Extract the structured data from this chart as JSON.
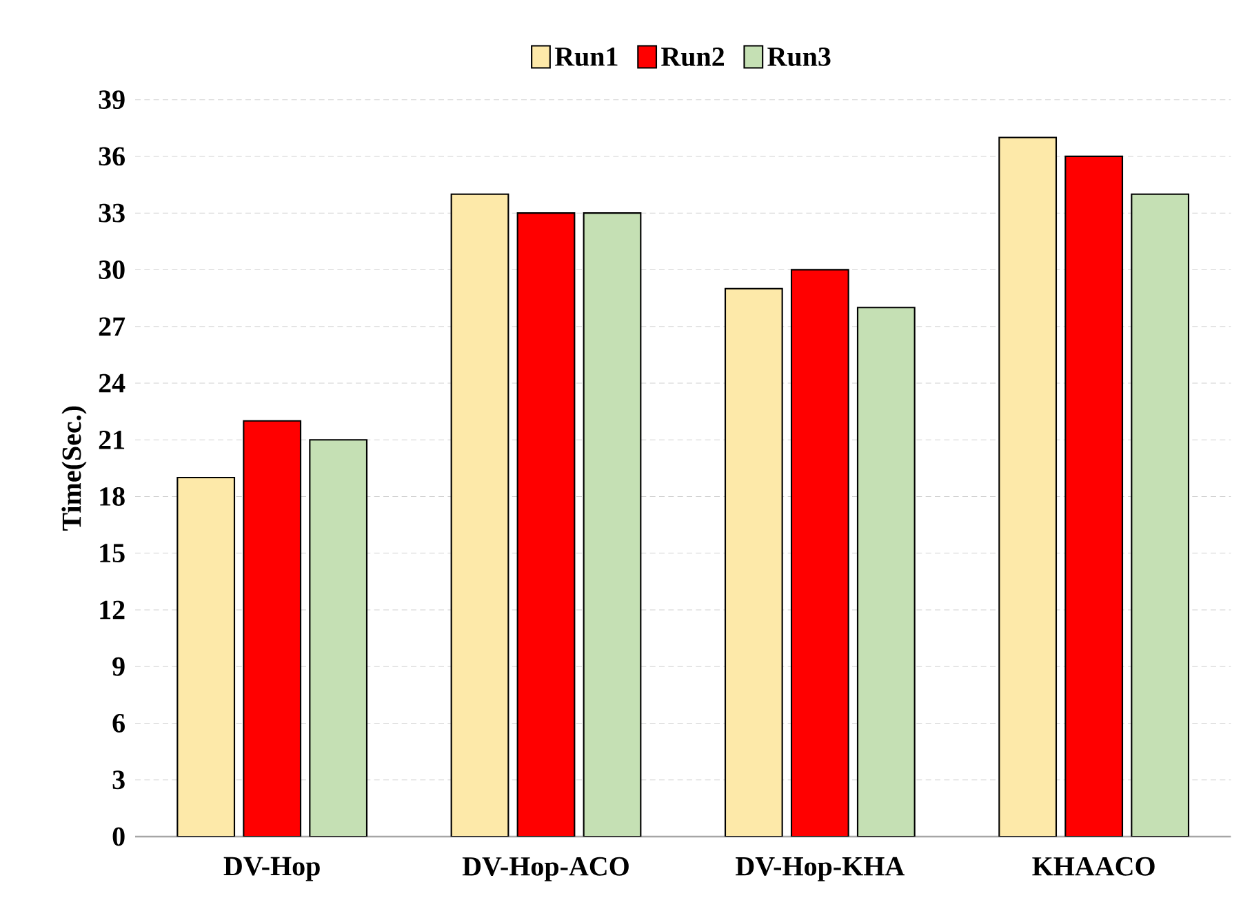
{
  "chart_data": {
    "type": "bar",
    "ylabel": "Time(Sec.)",
    "categories": [
      "DV-Hop",
      "DV-Hop-ACO",
      "DV-Hop-KHA",
      "KHAACO"
    ],
    "series": [
      {
        "name": "Run1",
        "color": "#fde9a9",
        "values": [
          19,
          34,
          29,
          37
        ]
      },
      {
        "name": "Run2",
        "color": "#ff0000",
        "values": [
          22,
          33,
          30,
          36
        ]
      },
      {
        "name": "Run3",
        "color": "#c5e0b4",
        "values": [
          21,
          33,
          28,
          34
        ]
      }
    ],
    "ylim": [
      0,
      39
    ],
    "yticks": [
      0,
      3,
      6,
      9,
      12,
      15,
      18,
      21,
      24,
      27,
      30,
      33,
      36,
      39
    ],
    "grid": "y",
    "legend": "top"
  }
}
